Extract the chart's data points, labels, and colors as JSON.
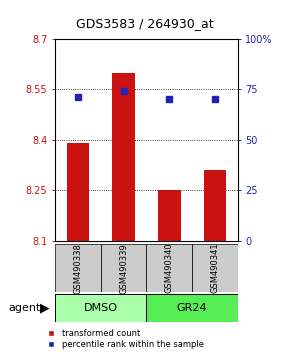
{
  "title": "GDS3583 / 264930_at",
  "samples": [
    "GSM490338",
    "GSM490339",
    "GSM490340",
    "GSM490341"
  ],
  "transformed_counts": [
    8.39,
    8.6,
    8.25,
    8.31
  ],
  "percentile_ranks": [
    71,
    74,
    70,
    70
  ],
  "ylim_left": [
    8.1,
    8.7
  ],
  "ylim_right": [
    0,
    100
  ],
  "yticks_left": [
    8.1,
    8.25,
    8.4,
    8.55,
    8.7
  ],
  "yticks_right": [
    0,
    25,
    50,
    75,
    100
  ],
  "ytick_labels_left": [
    "8.1",
    "8.25",
    "8.4",
    "8.55",
    "8.7"
  ],
  "ytick_labels_right": [
    "0",
    "25",
    "50",
    "75",
    "100%"
  ],
  "bar_color": "#cc1111",
  "dot_color": "#2222bb",
  "bar_width": 0.5,
  "agent_groups": [
    {
      "label": "DMSO",
      "samples": [
        0,
        1
      ],
      "color": "#aaffaa"
    },
    {
      "label": "GR24",
      "samples": [
        2,
        3
      ],
      "color": "#55ee55"
    }
  ],
  "agent_label": "agent",
  "legend_labels": [
    "transformed count",
    "percentile rank within the sample"
  ],
  "gridline_color": "#000000",
  "bar_base": 8.1,
  "sample_box_color": "#cccccc",
  "fig_bg": "#ffffff"
}
